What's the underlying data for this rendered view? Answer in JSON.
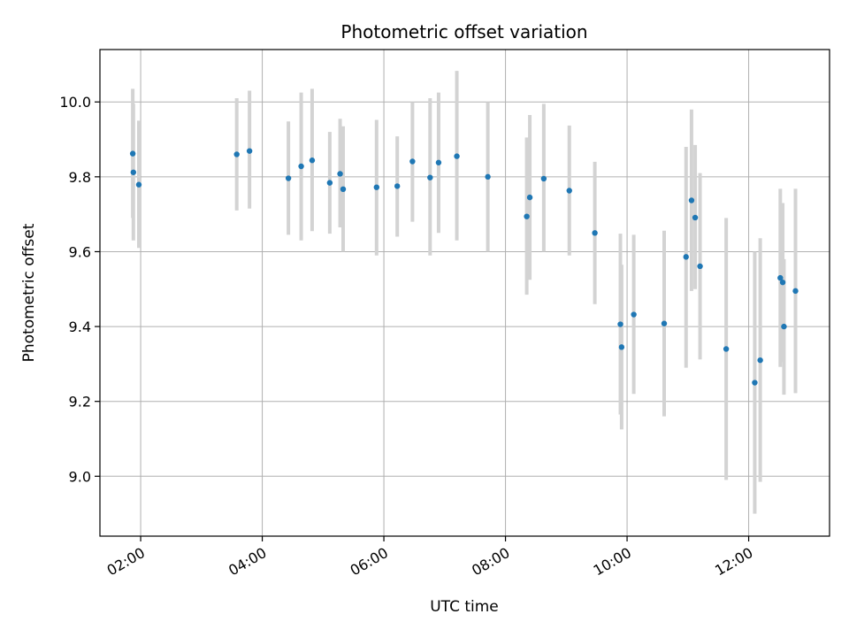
{
  "chart_data": {
    "type": "scatter",
    "title": "Photometric offset variation",
    "xlabel": "UTC time",
    "ylabel": "Photometric offset",
    "x_unit": "hours (UTC)",
    "xlim": [
      1.33,
      13.33
    ],
    "ylim": [
      8.84,
      10.14
    ],
    "grid": true,
    "x_ticks": [
      {
        "value": 2,
        "label": "02:00"
      },
      {
        "value": 4,
        "label": "04:00"
      },
      {
        "value": 6,
        "label": "06:00"
      },
      {
        "value": 8,
        "label": "08:00"
      },
      {
        "value": 10,
        "label": "10:00"
      },
      {
        "value": 12,
        "label": "12:00"
      }
    ],
    "y_ticks": [
      {
        "value": 9.0,
        "label": "9.0"
      },
      {
        "value": 9.2,
        "label": "9.2"
      },
      {
        "value": 9.4,
        "label": "9.4"
      },
      {
        "value": 9.6,
        "label": "9.6"
      },
      {
        "value": 9.8,
        "label": "9.8"
      },
      {
        "value": 10.0,
        "label": "10.0"
      }
    ],
    "point_color": "#1f77b4",
    "errorbar_color": "#d3d3d3",
    "points": [
      {
        "x": 1.87,
        "y": 9.862,
        "low": 9.69,
        "high": 10.035
      },
      {
        "x": 1.88,
        "y": 9.812,
        "low": 9.63,
        "high": 9.995
      },
      {
        "x": 1.97,
        "y": 9.779,
        "low": 9.61,
        "high": 9.95
      },
      {
        "x": 3.58,
        "y": 9.86,
        "low": 9.71,
        "high": 10.01
      },
      {
        "x": 3.79,
        "y": 9.869,
        "low": 9.715,
        "high": 10.03
      },
      {
        "x": 4.43,
        "y": 9.796,
        "low": 9.645,
        "high": 9.948
      },
      {
        "x": 4.64,
        "y": 9.828,
        "low": 9.63,
        "high": 10.025
      },
      {
        "x": 4.82,
        "y": 9.844,
        "low": 9.655,
        "high": 10.035
      },
      {
        "x": 5.11,
        "y": 9.784,
        "low": 9.648,
        "high": 9.92
      },
      {
        "x": 5.28,
        "y": 9.808,
        "low": 9.665,
        "high": 9.955
      },
      {
        "x": 5.33,
        "y": 9.767,
        "low": 9.6,
        "high": 9.935
      },
      {
        "x": 5.88,
        "y": 9.772,
        "low": 9.59,
        "high": 9.952
      },
      {
        "x": 6.22,
        "y": 9.775,
        "low": 9.64,
        "high": 9.908
      },
      {
        "x": 6.47,
        "y": 9.841,
        "low": 9.68,
        "high": 10.0
      },
      {
        "x": 6.76,
        "y": 9.798,
        "low": 9.59,
        "high": 10.01
      },
      {
        "x": 6.9,
        "y": 9.838,
        "low": 9.65,
        "high": 10.025
      },
      {
        "x": 7.2,
        "y": 9.855,
        "low": 9.63,
        "high": 10.083
      },
      {
        "x": 7.71,
        "y": 9.8,
        "low": 9.6,
        "high": 10.0
      },
      {
        "x": 8.35,
        "y": 9.694,
        "low": 9.485,
        "high": 9.905
      },
      {
        "x": 8.4,
        "y": 9.745,
        "low": 9.525,
        "high": 9.965
      },
      {
        "x": 8.63,
        "y": 9.795,
        "low": 9.6,
        "high": 9.995
      },
      {
        "x": 9.05,
        "y": 9.763,
        "low": 9.59,
        "high": 9.937
      },
      {
        "x": 9.47,
        "y": 9.65,
        "low": 9.46,
        "high": 9.84
      },
      {
        "x": 9.89,
        "y": 9.406,
        "low": 9.165,
        "high": 9.648
      },
      {
        "x": 9.91,
        "y": 9.345,
        "low": 9.125,
        "high": 9.565
      },
      {
        "x": 10.11,
        "y": 9.432,
        "low": 9.22,
        "high": 9.645
      },
      {
        "x": 10.61,
        "y": 9.408,
        "low": 9.16,
        "high": 9.656
      },
      {
        "x": 10.97,
        "y": 9.586,
        "low": 9.29,
        "high": 9.88
      },
      {
        "x": 11.06,
        "y": 9.737,
        "low": 9.495,
        "high": 9.98
      },
      {
        "x": 11.12,
        "y": 9.691,
        "low": 9.5,
        "high": 9.885
      },
      {
        "x": 11.2,
        "y": 9.561,
        "low": 9.312,
        "high": 9.81
      },
      {
        "x": 11.63,
        "y": 9.34,
        "low": 8.99,
        "high": 9.69
      },
      {
        "x": 12.1,
        "y": 9.25,
        "low": 8.9,
        "high": 9.6
      },
      {
        "x": 12.19,
        "y": 9.31,
        "low": 8.985,
        "high": 9.636
      },
      {
        "x": 12.52,
        "y": 9.53,
        "low": 9.292,
        "high": 9.768
      },
      {
        "x": 12.56,
        "y": 9.518,
        "low": 9.305,
        "high": 9.73
      },
      {
        "x": 12.58,
        "y": 9.4,
        "low": 9.218,
        "high": 9.58
      },
      {
        "x": 12.77,
        "y": 9.495,
        "low": 9.222,
        "high": 9.768
      }
    ]
  }
}
